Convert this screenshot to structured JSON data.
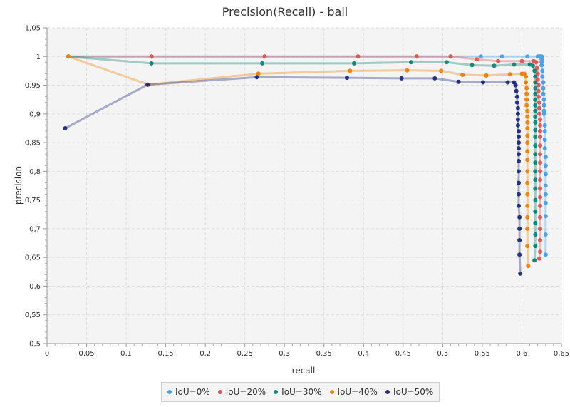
{
  "chart_data": {
    "type": "line",
    "title": "Precision(Recall) - ball",
    "xlabel": "recall",
    "ylabel": "precision",
    "xlim": [
      0,
      0.65
    ],
    "ylim": [
      0.5,
      1.05
    ],
    "x_ticks": [
      "0",
      "0,05",
      "0,1",
      "0,15",
      "0,2",
      "0,25",
      "0,3",
      "0,35",
      "0,4",
      "0,45",
      "0,5",
      "0,55",
      "0,6",
      "0,65"
    ],
    "y_ticks": [
      "0,5",
      "0,55",
      "0,6",
      "0,65",
      "0,7",
      "0,75",
      "0,8",
      "0,85",
      "0,9",
      "0,95",
      "1",
      "1,05"
    ],
    "grid": true,
    "legend_position": "bottom",
    "series": [
      {
        "name": "IoU=0%",
        "color": "#4aa3e8",
        "points": [
          [
            0.027,
            1.0
          ],
          [
            0.132,
            1.0
          ],
          [
            0.275,
            1.0
          ],
          [
            0.393,
            1.0
          ],
          [
            0.467,
            1.0
          ],
          [
            0.51,
            1.0
          ],
          [
            0.548,
            1.0
          ],
          [
            0.575,
            1.0
          ],
          [
            0.607,
            1.0
          ],
          [
            0.62,
            1.0
          ],
          [
            0.622,
            1.0
          ],
          [
            0.623,
            1.0
          ],
          [
            0.624,
            1.0
          ],
          [
            0.625,
            1.0
          ],
          [
            0.625,
            0.995
          ],
          [
            0.625,
            0.99
          ],
          [
            0.625,
            0.985
          ],
          [
            0.626,
            0.975
          ],
          [
            0.626,
            0.965
          ],
          [
            0.627,
            0.955
          ],
          [
            0.627,
            0.945
          ],
          [
            0.627,
            0.935
          ],
          [
            0.628,
            0.925
          ],
          [
            0.628,
            0.915
          ],
          [
            0.628,
            0.905
          ],
          [
            0.628,
            0.9
          ],
          [
            0.629,
            0.88
          ],
          [
            0.629,
            0.87
          ],
          [
            0.629,
            0.855
          ],
          [
            0.629,
            0.84
          ],
          [
            0.63,
            0.825
          ],
          [
            0.63,
            0.81
          ],
          [
            0.63,
            0.795
          ],
          [
            0.63,
            0.775
          ],
          [
            0.63,
            0.76
          ],
          [
            0.63,
            0.745
          ],
          [
            0.63,
            0.722
          ],
          [
            0.63,
            0.69
          ],
          [
            0.63,
            0.655
          ]
        ]
      },
      {
        "name": "IoU=20%",
        "color": "#e05a5a",
        "points": [
          [
            0.027,
            1.0
          ],
          [
            0.132,
            1.0
          ],
          [
            0.275,
            1.0
          ],
          [
            0.393,
            1.0
          ],
          [
            0.467,
            1.0
          ],
          [
            0.51,
            1.0
          ],
          [
            0.543,
            0.995
          ],
          [
            0.57,
            0.992
          ],
          [
            0.6,
            0.992
          ],
          [
            0.615,
            0.992
          ],
          [
            0.618,
            0.99
          ],
          [
            0.619,
            0.98
          ],
          [
            0.62,
            0.97
          ],
          [
            0.62,
            0.96
          ],
          [
            0.621,
            0.95
          ],
          [
            0.621,
            0.94
          ],
          [
            0.621,
            0.93
          ],
          [
            0.622,
            0.92
          ],
          [
            0.622,
            0.91
          ],
          [
            0.622,
            0.9
          ],
          [
            0.623,
            0.89
          ],
          [
            0.623,
            0.88
          ],
          [
            0.623,
            0.87
          ],
          [
            0.623,
            0.86
          ],
          [
            0.623,
            0.845
          ],
          [
            0.623,
            0.83
          ],
          [
            0.623,
            0.815
          ],
          [
            0.623,
            0.8
          ],
          [
            0.623,
            0.785
          ],
          [
            0.623,
            0.77
          ],
          [
            0.623,
            0.755
          ],
          [
            0.623,
            0.74
          ],
          [
            0.623,
            0.72
          ],
          [
            0.623,
            0.7
          ],
          [
            0.623,
            0.68
          ],
          [
            0.623,
            0.66
          ],
          [
            0.622,
            0.648
          ]
        ]
      },
      {
        "name": "IoU=30%",
        "color": "#14897a",
        "points": [
          [
            0.027,
            1.0
          ],
          [
            0.132,
            0.988
          ],
          [
            0.272,
            0.988
          ],
          [
            0.388,
            0.988
          ],
          [
            0.46,
            0.99
          ],
          [
            0.505,
            0.99
          ],
          [
            0.537,
            0.985
          ],
          [
            0.565,
            0.984
          ],
          [
            0.59,
            0.986
          ],
          [
            0.61,
            0.986
          ],
          [
            0.614,
            0.984
          ],
          [
            0.616,
            0.975
          ],
          [
            0.617,
            0.965
          ],
          [
            0.617,
            0.955
          ],
          [
            0.617,
            0.945
          ],
          [
            0.617,
            0.935
          ],
          [
            0.617,
            0.925
          ],
          [
            0.617,
            0.915
          ],
          [
            0.617,
            0.905
          ],
          [
            0.617,
            0.895
          ],
          [
            0.617,
            0.885
          ],
          [
            0.617,
            0.872
          ],
          [
            0.617,
            0.86
          ],
          [
            0.617,
            0.845
          ],
          [
            0.617,
            0.83
          ],
          [
            0.617,
            0.815
          ],
          [
            0.617,
            0.8
          ],
          [
            0.617,
            0.785
          ],
          [
            0.617,
            0.77
          ],
          [
            0.617,
            0.75
          ],
          [
            0.617,
            0.73
          ],
          [
            0.617,
            0.71
          ],
          [
            0.617,
            0.69
          ],
          [
            0.617,
            0.67
          ],
          [
            0.616,
            0.645
          ]
        ]
      },
      {
        "name": "IoU=40%",
        "color": "#f0850a",
        "points": [
          [
            0.027,
            1.0
          ],
          [
            0.128,
            0.951
          ],
          [
            0.267,
            0.97
          ],
          [
            0.383,
            0.975
          ],
          [
            0.455,
            0.976
          ],
          [
            0.498,
            0.975
          ],
          [
            0.525,
            0.968
          ],
          [
            0.555,
            0.967
          ],
          [
            0.585,
            0.969
          ],
          [
            0.6,
            0.97
          ],
          [
            0.603,
            0.97
          ],
          [
            0.605,
            0.965
          ],
          [
            0.605,
            0.955
          ],
          [
            0.606,
            0.945
          ],
          [
            0.606,
            0.935
          ],
          [
            0.606,
            0.925
          ],
          [
            0.606,
            0.915
          ],
          [
            0.607,
            0.905
          ],
          [
            0.607,
            0.895
          ],
          [
            0.607,
            0.885
          ],
          [
            0.607,
            0.875
          ],
          [
            0.607,
            0.862
          ],
          [
            0.607,
            0.85
          ],
          [
            0.607,
            0.835
          ],
          [
            0.607,
            0.82
          ],
          [
            0.607,
            0.8
          ],
          [
            0.607,
            0.78
          ],
          [
            0.607,
            0.76
          ],
          [
            0.607,
            0.74
          ],
          [
            0.607,
            0.72
          ],
          [
            0.607,
            0.7
          ],
          [
            0.607,
            0.67
          ],
          [
            0.608,
            0.635
          ]
        ]
      },
      {
        "name": "IoU=50%",
        "color": "#253180",
        "points": [
          [
            0.023,
            0.875
          ],
          [
            0.127,
            0.951
          ],
          [
            0.265,
            0.964
          ],
          [
            0.379,
            0.963
          ],
          [
            0.448,
            0.962
          ],
          [
            0.49,
            0.962
          ],
          [
            0.52,
            0.956
          ],
          [
            0.551,
            0.955
          ],
          [
            0.582,
            0.955
          ],
          [
            0.59,
            0.955
          ],
          [
            0.592,
            0.95
          ],
          [
            0.593,
            0.94
          ],
          [
            0.594,
            0.93
          ],
          [
            0.594,
            0.92
          ],
          [
            0.595,
            0.91
          ],
          [
            0.595,
            0.9
          ],
          [
            0.595,
            0.89
          ],
          [
            0.595,
            0.88
          ],
          [
            0.596,
            0.87
          ],
          [
            0.596,
            0.86
          ],
          [
            0.596,
            0.85
          ],
          [
            0.596,
            0.84
          ],
          [
            0.596,
            0.83
          ],
          [
            0.596,
            0.818
          ],
          [
            0.596,
            0.8
          ],
          [
            0.596,
            0.78
          ],
          [
            0.596,
            0.76
          ],
          [
            0.596,
            0.74
          ],
          [
            0.597,
            0.72
          ],
          [
            0.597,
            0.7
          ],
          [
            0.597,
            0.68
          ],
          [
            0.597,
            0.655
          ],
          [
            0.598,
            0.622
          ]
        ]
      }
    ]
  }
}
